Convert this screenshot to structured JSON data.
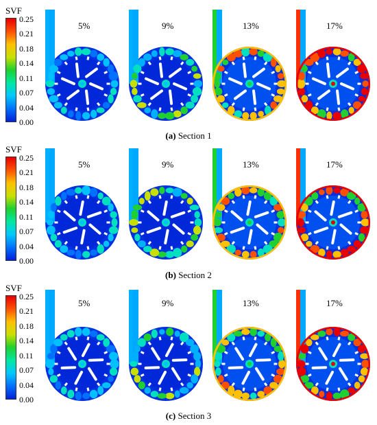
{
  "colorbar": {
    "title": "SVF",
    "ticks": [
      "0.25",
      "0.21",
      "0.18",
      "0.14",
      "0.11",
      "0.07",
      "0.04",
      "0.00"
    ],
    "colors": [
      "#0020d8",
      "#0070ff",
      "#00c8ff",
      "#00e8a0",
      "#20d030",
      "#c8e000",
      "#ffc000",
      "#ff5000",
      "#e80000"
    ]
  },
  "sections": [
    {
      "caption_letter": "(a)",
      "caption_text": "Section 1",
      "panels": [
        {
          "label": "5%",
          "level": 0.05
        },
        {
          "label": "9%",
          "level": 0.09
        },
        {
          "label": "13%",
          "level": 0.13
        },
        {
          "label": "17%",
          "level": 0.17
        }
      ]
    },
    {
      "caption_letter": "(b)",
      "caption_text": "Section 2",
      "panels": [
        {
          "label": "5%",
          "level": 0.05
        },
        {
          "label": "9%",
          "level": 0.09
        },
        {
          "label": "13%",
          "level": 0.13
        },
        {
          "label": "17%",
          "level": 0.17
        }
      ]
    },
    {
      "caption_letter": "(c)",
      "caption_text": "Section 3",
      "panels": [
        {
          "label": "5%",
          "level": 0.05
        },
        {
          "label": "9%",
          "level": 0.09
        },
        {
          "label": "13%",
          "level": 0.13
        },
        {
          "label": "17%",
          "level": 0.17
        }
      ]
    }
  ]
}
